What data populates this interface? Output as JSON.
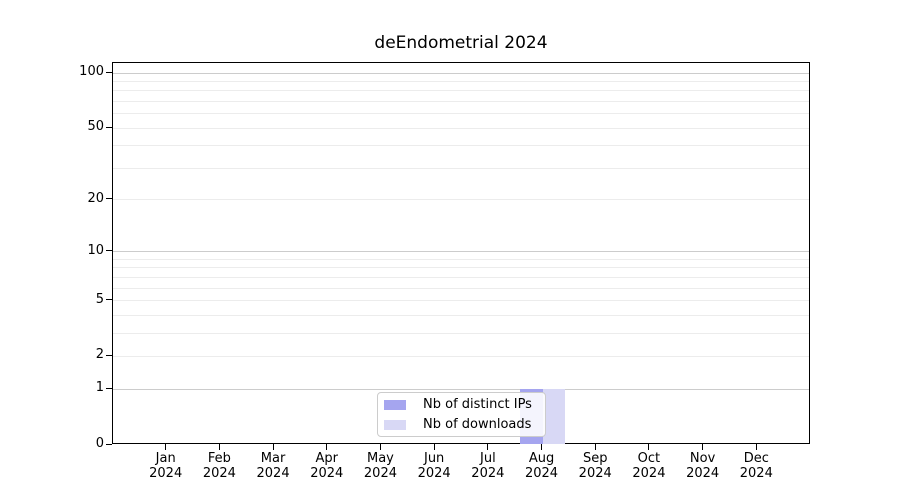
{
  "title": "deEndometrial 2024",
  "chart_data": {
    "type": "bar",
    "title": "deEndometrial 2024",
    "categories": [
      "Jan 2024",
      "Feb 2024",
      "Mar 2024",
      "Apr 2024",
      "May 2024",
      "Jun 2024",
      "Jul 2024",
      "Aug 2024",
      "Sep 2024",
      "Oct 2024",
      "Nov 2024",
      "Dec 2024"
    ],
    "series": [
      {
        "name": "Nb of distinct IPs",
        "color": "#a5a5ef",
        "values": [
          0,
          0,
          0,
          0,
          0,
          0,
          0,
          1,
          0,
          0,
          0,
          0
        ]
      },
      {
        "name": "Nb of downloads",
        "color": "#d8d8f5",
        "values": [
          0,
          0,
          0,
          0,
          0,
          0,
          0,
          1,
          0,
          0,
          0,
          0
        ]
      }
    ],
    "yscale": "log1p",
    "ylim": [
      0,
      113
    ],
    "yticks": [
      0,
      1,
      2,
      5,
      10,
      20,
      50,
      100
    ],
    "grid_major": [
      1,
      10,
      100
    ],
    "grid_minor": [
      2,
      3,
      4,
      5,
      6,
      7,
      8,
      9,
      20,
      30,
      40,
      50,
      60,
      70,
      80,
      90
    ],
    "grid": true,
    "legend_position": "lower center"
  },
  "colors": {
    "major_grid": "#cccccc",
    "minor_grid": "#ececec",
    "axis": "#000000",
    "legend_border": "#cccccc"
  }
}
